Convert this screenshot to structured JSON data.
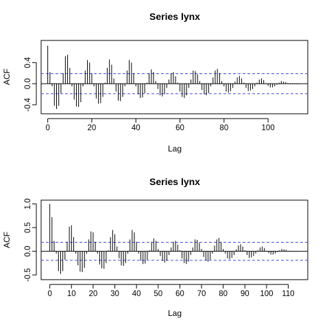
{
  "charts": [
    {
      "type": "bar",
      "title": "Series  lynx",
      "xlabel": "Lag",
      "ylabel": "ACF",
      "xlim": [
        -3,
        118
      ],
      "ylim": [
        -0.57,
        0.82
      ],
      "xticks": [
        0,
        20,
        40,
        60,
        80,
        100
      ],
      "yticks": [
        -0.4,
        0.0,
        0.4
      ],
      "ci": 0.19,
      "lags": [
        0,
        1,
        2,
        3,
        4,
        5,
        6,
        7,
        8,
        9,
        10,
        11,
        12,
        13,
        14,
        15,
        16,
        17,
        18,
        19,
        20,
        21,
        22,
        23,
        24,
        25,
        26,
        27,
        28,
        29,
        30,
        31,
        32,
        33,
        34,
        35,
        36,
        37,
        38,
        39,
        40,
        41,
        42,
        43,
        44,
        45,
        46,
        47,
        48,
        49,
        50,
        51,
        52,
        53,
        54,
        55,
        56,
        57,
        58,
        59,
        60,
        61,
        62,
        63,
        64,
        65,
        66,
        67,
        68,
        69,
        70,
        71,
        72,
        73,
        74,
        75,
        76,
        77,
        78,
        79,
        80,
        81,
        82,
        83,
        84,
        85,
        86,
        87,
        88,
        89,
        90,
        91,
        92,
        93,
        94,
        95,
        96,
        97,
        98,
        99,
        100,
        101,
        102,
        103,
        104,
        105,
        106,
        107,
        108,
        109,
        110,
        111,
        112,
        113,
        114
      ],
      "values": [
        0.72,
        0.22,
        -0.05,
        -0.42,
        -0.48,
        -0.42,
        -0.18,
        0.2,
        0.52,
        0.55,
        0.3,
        -0.05,
        -0.3,
        -0.43,
        -0.44,
        -0.35,
        -0.05,
        0.25,
        0.45,
        0.4,
        0.2,
        -0.05,
        -0.28,
        -0.38,
        -0.37,
        -0.25,
        0.02,
        0.3,
        0.46,
        0.36,
        0.1,
        -0.15,
        -0.32,
        -0.33,
        -0.25,
        -0.05,
        0.25,
        0.45,
        0.4,
        0.2,
        -0.05,
        -0.2,
        -0.27,
        -0.26,
        -0.18,
        0.02,
        0.2,
        0.27,
        0.22,
        0.05,
        -0.1,
        -0.22,
        -0.24,
        -0.2,
        -0.08,
        0.08,
        0.2,
        0.22,
        0.14,
        0.02,
        -0.15,
        -0.25,
        -0.27,
        -0.22,
        -0.08,
        0.08,
        0.25,
        0.24,
        0.18,
        0.05,
        -0.12,
        -0.2,
        -0.22,
        -0.18,
        -0.05,
        0.12,
        0.25,
        0.28,
        0.2,
        0.05,
        -0.05,
        -0.15,
        -0.17,
        -0.14,
        -0.08,
        0.04,
        0.12,
        0.15,
        0.1,
        0.02,
        -0.08,
        -0.14,
        -0.13,
        -0.1,
        -0.05,
        0.02,
        0.08,
        0.1,
        0.07,
        0.01,
        -0.04,
        -0.07,
        -0.07,
        -0.05,
        -0.02,
        0.02,
        0.05,
        0.04,
        0.03,
        0.01,
        -0.01,
        -0.01,
        -0.01,
        -0.01,
        -0.01
      ]
    },
    {
      "type": "bar",
      "title": "Series  lynx",
      "xlabel": "Lag",
      "ylabel": "ACF",
      "xlim": [
        -4,
        119
      ],
      "ylim": [
        -0.6,
        1.08
      ],
      "xticks": [
        0,
        10,
        20,
        30,
        40,
        50,
        60,
        70,
        80,
        90,
        100,
        110
      ],
      "yticks": [
        -0.5,
        0.0,
        0.5,
        1.0
      ],
      "ci": 0.19,
      "lags": [
        0,
        1,
        2,
        3,
        4,
        5,
        6,
        7,
        8,
        9,
        10,
        11,
        12,
        13,
        14,
        15,
        16,
        17,
        18,
        19,
        20,
        21,
        22,
        23,
        24,
        25,
        26,
        27,
        28,
        29,
        30,
        31,
        32,
        33,
        34,
        35,
        36,
        37,
        38,
        39,
        40,
        41,
        42,
        43,
        44,
        45,
        46,
        47,
        48,
        49,
        50,
        51,
        52,
        53,
        54,
        55,
        56,
        57,
        58,
        59,
        60,
        61,
        62,
        63,
        64,
        65,
        66,
        67,
        68,
        69,
        70,
        71,
        72,
        73,
        74,
        75,
        76,
        77,
        78,
        79,
        80,
        81,
        82,
        83,
        84,
        85,
        86,
        87,
        88,
        89,
        90,
        91,
        92,
        93,
        94,
        95,
        96,
        97,
        98,
        99,
        100,
        101,
        102,
        103,
        104,
        105,
        106,
        107,
        108,
        109,
        110,
        111,
        112,
        113,
        114
      ],
      "values": [
        1.0,
        0.72,
        0.22,
        -0.05,
        -0.42,
        -0.48,
        -0.42,
        -0.18,
        0.2,
        0.52,
        0.55,
        0.3,
        -0.05,
        -0.3,
        -0.43,
        -0.44,
        -0.35,
        -0.05,
        0.25,
        0.42,
        0.4,
        0.2,
        -0.05,
        -0.28,
        -0.36,
        -0.37,
        -0.25,
        0.02,
        0.3,
        0.45,
        0.36,
        0.1,
        -0.15,
        -0.3,
        -0.31,
        -0.25,
        -0.05,
        0.25,
        0.45,
        0.4,
        0.2,
        -0.05,
        -0.2,
        -0.27,
        -0.26,
        -0.18,
        0.02,
        0.2,
        0.27,
        0.22,
        0.05,
        -0.1,
        -0.2,
        -0.24,
        -0.2,
        -0.08,
        0.08,
        0.2,
        0.22,
        0.14,
        0.02,
        -0.15,
        -0.25,
        -0.27,
        -0.22,
        -0.08,
        0.08,
        0.25,
        0.24,
        0.18,
        0.05,
        -0.12,
        -0.2,
        -0.22,
        -0.18,
        -0.05,
        0.12,
        0.25,
        0.28,
        0.2,
        0.05,
        -0.05,
        -0.15,
        -0.17,
        -0.14,
        -0.08,
        0.04,
        0.12,
        0.15,
        0.1,
        0.02,
        -0.08,
        -0.14,
        -0.13,
        -0.1,
        -0.05,
        0.02,
        0.08,
        0.1,
        0.07,
        0.01,
        -0.04,
        -0.07,
        -0.07,
        -0.05,
        -0.02,
        0.02,
        0.05,
        0.04,
        0.03,
        0.01,
        -0.01,
        -0.01,
        -0.01,
        -0.01
      ]
    }
  ],
  "colors": {
    "ci_line": "#4848e8",
    "bars": "#000000",
    "frame": "#000000"
  }
}
